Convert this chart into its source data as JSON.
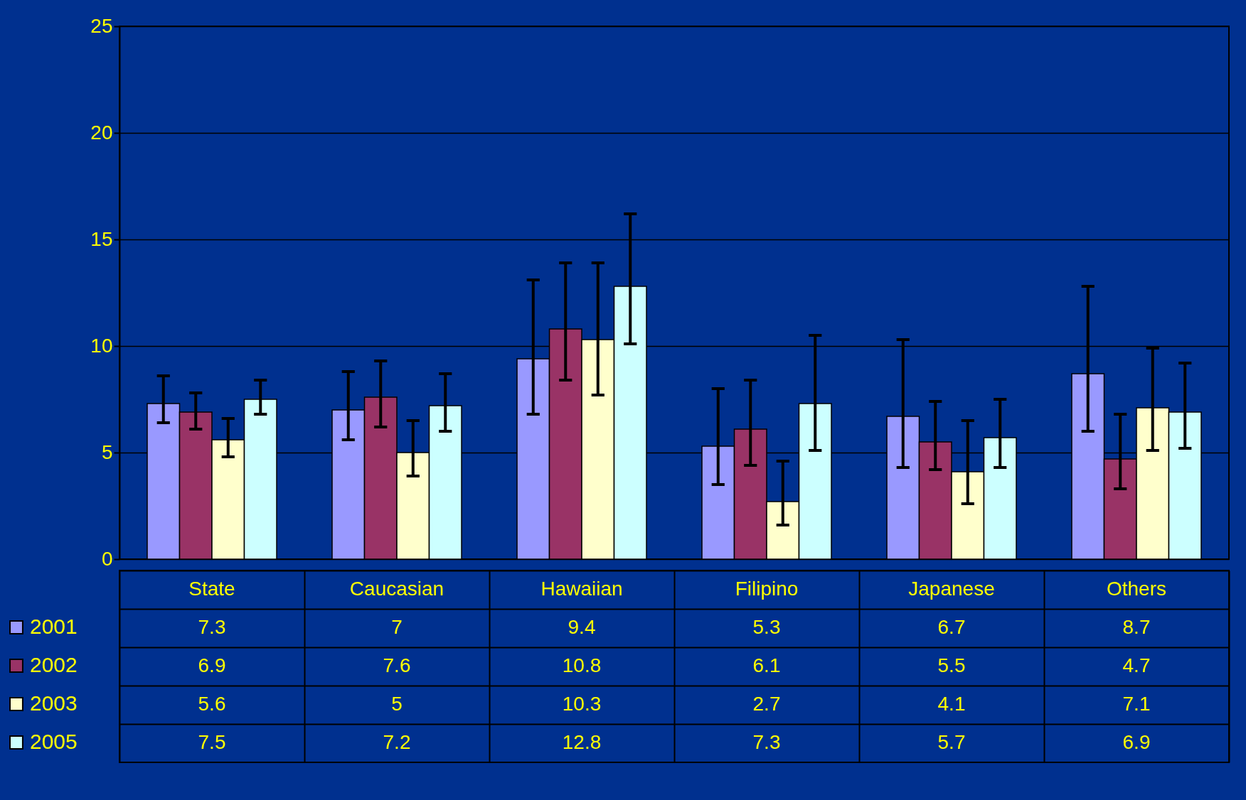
{
  "chart_data": {
    "type": "bar",
    "categories": [
      "State",
      "Caucasian",
      "Hawaiian",
      "Filipino",
      "Japanese",
      "Others"
    ],
    "series": [
      {
        "name": "2001",
        "color": "#9999ff",
        "values": [
          7.3,
          7,
          9.4,
          5.3,
          6.7,
          8.7
        ],
        "errors": [
          [
            6.4,
            8.6
          ],
          [
            5.6,
            8.8
          ],
          [
            6.8,
            13.1
          ],
          [
            3.5,
            8.0
          ],
          [
            4.3,
            10.3
          ],
          [
            6.0,
            12.8
          ]
        ]
      },
      {
        "name": "2002",
        "color": "#993366",
        "values": [
          6.9,
          7.6,
          10.8,
          6.1,
          5.5,
          4.7
        ],
        "errors": [
          [
            6.1,
            7.8
          ],
          [
            6.2,
            9.3
          ],
          [
            8.4,
            13.9
          ],
          [
            4.4,
            8.4
          ],
          [
            4.2,
            7.4
          ],
          [
            3.3,
            6.8
          ]
        ]
      },
      {
        "name": "2003",
        "color": "#ffffcc",
        "values": [
          5.6,
          5,
          10.3,
          2.7,
          4.1,
          7.1
        ],
        "errors": [
          [
            4.8,
            6.6
          ],
          [
            3.9,
            6.5
          ],
          [
            7.7,
            13.9
          ],
          [
            1.6,
            4.6
          ],
          [
            2.6,
            6.5
          ],
          [
            5.1,
            9.9
          ]
        ]
      },
      {
        "name": "2005",
        "color": "#ccffff",
        "values": [
          7.5,
          7.2,
          12.8,
          7.3,
          5.7,
          6.9
        ],
        "errors": [
          [
            6.8,
            8.4
          ],
          [
            6.0,
            8.7
          ],
          [
            10.1,
            16.2
          ],
          [
            5.1,
            10.5
          ],
          [
            4.3,
            7.5
          ],
          [
            5.2,
            9.2
          ]
        ]
      }
    ],
    "ylim": [
      0,
      25
    ],
    "yticks": [
      0,
      5,
      10,
      15,
      20,
      25
    ],
    "grid": "y",
    "legend": "bottom left",
    "data_labels": true
  }
}
